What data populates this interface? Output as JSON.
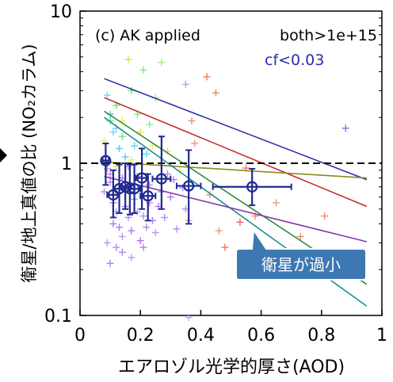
{
  "chart_data": {
    "type": "scatter",
    "panel_label": "(c) AK applied",
    "condition_1": "both>1e+15",
    "condition_2": "cf<0.03",
    "ylabel": "衛星/地上真値の比 (NO₂カラム)",
    "xlabel": "エアロゾル光学的厚さ(AOD)",
    "x_ticks": [
      "0",
      "0.2",
      "0.4",
      "0.6",
      "0.8",
      "1"
    ],
    "y_ticks": [
      "0.1",
      "1",
      "10"
    ],
    "xlim": [
      0,
      1
    ],
    "ylim": [
      0.1,
      10
    ],
    "y_scale": "log",
    "reference_line": {
      "y": 1,
      "style": "dashed"
    },
    "callout": "衛星が過小",
    "colors": {
      "axis": "#000000",
      "binned_means": "#1f2a8f",
      "callout_fill": "#3d78b3",
      "callout_text": "#ffffff",
      "condition_2": "#2b2bb0"
    },
    "fit_lines": [
      {
        "color": "#2e2ea8",
        "x": [
          0.08,
          0.95
        ],
        "y": [
          3.6,
          0.78
        ]
      },
      {
        "color": "#c0302f",
        "x": [
          0.08,
          0.95
        ],
        "y": [
          2.7,
          0.52
        ]
      },
      {
        "color": "#8a8a1a",
        "x": [
          0.08,
          0.95
        ],
        "y": [
          1.02,
          0.8
        ]
      },
      {
        "color": "#2f8a3a",
        "x": [
          0.08,
          0.95
        ],
        "y": [
          2.2,
          0.16
        ]
      },
      {
        "color": "#1a8f94",
        "x": [
          0.08,
          0.95
        ],
        "y": [
          2.0,
          0.115
        ]
      },
      {
        "color": "#8a3aa8",
        "x": [
          0.08,
          0.95
        ],
        "y": [
          0.82,
          0.305
        ]
      }
    ],
    "binned_means": [
      {
        "x": 0.085,
        "y": 1.04,
        "xerr": 0.01,
        "ylo": 0.72,
        "yhi": 1.35
      },
      {
        "x": 0.11,
        "y": 0.62,
        "xerr": 0.02,
        "ylo": 0.44,
        "yhi": 0.9
      },
      {
        "x": 0.13,
        "y": 0.68,
        "xerr": 0.02,
        "ylo": 0.47,
        "yhi": 0.98
      },
      {
        "x": 0.15,
        "y": 0.7,
        "xerr": 0.02,
        "ylo": 0.5,
        "yhi": 1.0
      },
      {
        "x": 0.165,
        "y": 0.68,
        "xerr": 0.015,
        "ylo": 0.46,
        "yhi": 0.98
      },
      {
        "x": 0.18,
        "y": 0.68,
        "xerr": 0.02,
        "ylo": 0.47,
        "yhi": 0.98
      },
      {
        "x": 0.205,
        "y": 0.8,
        "xerr": 0.02,
        "ylo": 0.5,
        "yhi": 1.25
      },
      {
        "x": 0.225,
        "y": 0.61,
        "xerr": 0.025,
        "ylo": 0.42,
        "yhi": 0.85
      },
      {
        "x": 0.27,
        "y": 0.79,
        "xerr": 0.03,
        "ylo": 0.5,
        "yhi": 1.5
      },
      {
        "x": 0.36,
        "y": 0.71,
        "xerr": 0.04,
        "ylo": 0.4,
        "yhi": 1.22
      },
      {
        "x": 0.57,
        "y": 0.7,
        "xerr": 0.13,
        "ylo": 0.53,
        "yhi": 0.92
      }
    ],
    "scatter_points": [
      {
        "x": 0.1,
        "y": 1.9,
        "c": "#55ee55"
      },
      {
        "x": 0.12,
        "y": 2.4,
        "c": "#55ee55"
      },
      {
        "x": 0.14,
        "y": 1.5,
        "c": "#77dd77"
      },
      {
        "x": 0.17,
        "y": 3.0,
        "c": "#66ee66"
      },
      {
        "x": 0.19,
        "y": 2.1,
        "c": "#77ee77"
      },
      {
        "x": 0.21,
        "y": 4.1,
        "c": "#77ee77"
      },
      {
        "x": 0.23,
        "y": 1.8,
        "c": "#88ee88"
      },
      {
        "x": 0.25,
        "y": 2.7,
        "c": "#aaee66"
      },
      {
        "x": 0.27,
        "y": 4.6,
        "c": "#aaee66"
      },
      {
        "x": 0.16,
        "y": 4.8,
        "c": "#bbee55"
      },
      {
        "x": 0.09,
        "y": 2.8,
        "c": "#66ddee"
      },
      {
        "x": 0.11,
        "y": 1.6,
        "c": "#66ddee"
      },
      {
        "x": 0.13,
        "y": 1.25,
        "c": "#55ccee"
      },
      {
        "x": 0.15,
        "y": 1.1,
        "c": "#55ccee"
      },
      {
        "x": 0.18,
        "y": 1.3,
        "c": "#66ccee"
      },
      {
        "x": 0.22,
        "y": 1.15,
        "c": "#55ddee"
      },
      {
        "x": 0.1,
        "y": 2.1,
        "c": "#66bbee"
      },
      {
        "x": 0.12,
        "y": 1.7,
        "c": "#77ccff"
      },
      {
        "x": 0.08,
        "y": 1.4,
        "c": "#eeee55"
      },
      {
        "x": 0.14,
        "y": 1.9,
        "c": "#eeee55"
      },
      {
        "x": 0.17,
        "y": 1.05,
        "c": "#eeee66"
      },
      {
        "x": 0.2,
        "y": 1.6,
        "c": "#eedd55"
      },
      {
        "x": 0.24,
        "y": 1.3,
        "c": "#eeee66"
      },
      {
        "x": 0.29,
        "y": 1.2,
        "c": "#eedd66"
      },
      {
        "x": 0.33,
        "y": 0.9,
        "c": "#eeee77"
      },
      {
        "x": 0.12,
        "y": 0.95,
        "c": "#ddee55"
      },
      {
        "x": 0.42,
        "y": 3.7,
        "c": "#ee7755"
      },
      {
        "x": 0.45,
        "y": 2.9,
        "c": "#ee8866"
      },
      {
        "x": 0.38,
        "y": 1.35,
        "c": "#ee9977"
      },
      {
        "x": 0.37,
        "y": 1.9,
        "c": "#ee8877"
      },
      {
        "x": 0.55,
        "y": 0.93,
        "c": "#ee7777"
      },
      {
        "x": 0.43,
        "y": 0.62,
        "c": "#ee8866"
      },
      {
        "x": 0.46,
        "y": 0.36,
        "c": "#ee9988"
      },
      {
        "x": 0.48,
        "y": 0.28,
        "c": "#ee7755"
      },
      {
        "x": 0.53,
        "y": 0.41,
        "c": "#ee6666"
      },
      {
        "x": 0.58,
        "y": 0.45,
        "c": "#ee8877"
      },
      {
        "x": 0.65,
        "y": 0.55,
        "c": "#ee9988"
      },
      {
        "x": 0.73,
        "y": 0.33,
        "c": "#ee8866"
      },
      {
        "x": 0.36,
        "y": 0.42,
        "c": "#ee99aa"
      },
      {
        "x": 0.81,
        "y": 0.45,
        "c": "#ee8877"
      },
      {
        "x": 0.35,
        "y": 3.3,
        "c": "#aaaaee"
      },
      {
        "x": 0.88,
        "y": 1.7,
        "c": "#7777dd"
      },
      {
        "x": 0.09,
        "y": 0.92,
        "c": "#bb88ee"
      },
      {
        "x": 0.1,
        "y": 0.75,
        "c": "#bb88ee"
      },
      {
        "x": 0.11,
        "y": 0.55,
        "c": "#aa77ee"
      },
      {
        "x": 0.12,
        "y": 0.48,
        "c": "#bb88ee"
      },
      {
        "x": 0.13,
        "y": 0.38,
        "c": "#aa77ee"
      },
      {
        "x": 0.14,
        "y": 0.33,
        "c": "#bb99ee"
      },
      {
        "x": 0.15,
        "y": 0.52,
        "c": "#aa77ee"
      },
      {
        "x": 0.16,
        "y": 0.44,
        "c": "#bb88ee"
      },
      {
        "x": 0.17,
        "y": 0.36,
        "c": "#aa77ee"
      },
      {
        "x": 0.18,
        "y": 0.58,
        "c": "#bb88ee"
      },
      {
        "x": 0.19,
        "y": 0.48,
        "c": "#bb99ee"
      },
      {
        "x": 0.2,
        "y": 0.31,
        "c": "#aa77ee"
      },
      {
        "x": 0.21,
        "y": 0.45,
        "c": "#bb88ee"
      },
      {
        "x": 0.22,
        "y": 0.38,
        "c": "#aa88ee"
      },
      {
        "x": 0.23,
        "y": 0.55,
        "c": "#bb88ee"
      },
      {
        "x": 0.24,
        "y": 0.42,
        "c": "#aa77ee"
      },
      {
        "x": 0.25,
        "y": 0.35,
        "c": "#bb99ee"
      },
      {
        "x": 0.26,
        "y": 0.52,
        "c": "#aa77ee"
      },
      {
        "x": 0.28,
        "y": 0.44,
        "c": "#bb88ee"
      },
      {
        "x": 0.3,
        "y": 0.6,
        "c": "#aa77ee"
      },
      {
        "x": 0.32,
        "y": 0.37,
        "c": "#bb88ee"
      },
      {
        "x": 0.35,
        "y": 0.5,
        "c": "#aa88ee"
      },
      {
        "x": 0.09,
        "y": 0.3,
        "c": "#bb99ee"
      },
      {
        "x": 0.1,
        "y": 0.22,
        "c": "#aa88ee"
      },
      {
        "x": 0.12,
        "y": 0.28,
        "c": "#bb88ee"
      },
      {
        "x": 0.14,
        "y": 0.26,
        "c": "#aa88ee"
      },
      {
        "x": 0.17,
        "y": 0.24,
        "c": "#bb99ee"
      },
      {
        "x": 0.21,
        "y": 0.28,
        "c": "#aa88ee"
      },
      {
        "x": 0.1,
        "y": 0.85,
        "c": "#bb88ee"
      },
      {
        "x": 0.14,
        "y": 0.8,
        "c": "#aa77ee"
      },
      {
        "x": 0.16,
        "y": 0.95,
        "c": "#bb99ee"
      },
      {
        "x": 0.19,
        "y": 0.82,
        "c": "#aa77ee"
      },
      {
        "x": 0.23,
        "y": 0.72,
        "c": "#bb88ee"
      },
      {
        "x": 0.27,
        "y": 0.65,
        "c": "#aa77ee"
      },
      {
        "x": 0.29,
        "y": 0.85,
        "c": "#bb88ee"
      },
      {
        "x": 0.31,
        "y": 0.78,
        "c": "#aa88ee"
      },
      {
        "x": 0.34,
        "y": 0.69,
        "c": "#bb88ee"
      },
      {
        "x": 0.36,
        "y": 0.097,
        "c": "#cc99ee"
      },
      {
        "x": 0.08,
        "y": 0.65,
        "c": "#bb88ee"
      },
      {
        "x": 0.11,
        "y": 0.4,
        "c": "#aa77ee"
      }
    ]
  }
}
